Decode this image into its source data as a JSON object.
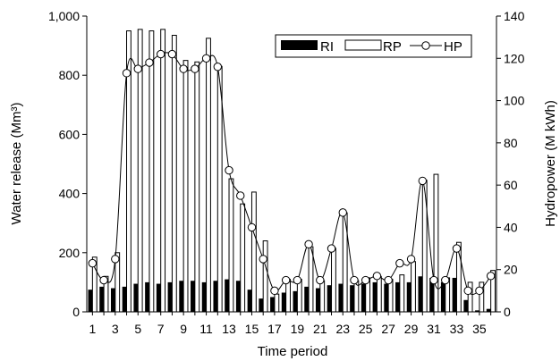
{
  "chart_data": {
    "type": "bar",
    "xlabel": "Time period",
    "ylabel": "Water release (Mm³)",
    "y2label": "Hydropower (M kWh)",
    "ylim": [
      0,
      1000
    ],
    "y2lim": [
      0,
      140
    ],
    "yticks": [
      "0",
      "200",
      "400",
      "600",
      "800",
      "1,000"
    ],
    "yticks_values": [
      0,
      200,
      400,
      600,
      800,
      1000
    ],
    "y2ticks": [
      "0",
      "20",
      "40",
      "60",
      "80",
      "100",
      "120",
      "140"
    ],
    "y2ticks_values": [
      0,
      20,
      40,
      60,
      80,
      100,
      120,
      140
    ],
    "x": [
      1,
      2,
      3,
      4,
      5,
      6,
      7,
      8,
      9,
      10,
      11,
      12,
      13,
      14,
      15,
      16,
      17,
      18,
      19,
      20,
      21,
      22,
      23,
      24,
      25,
      26,
      27,
      28,
      29,
      30,
      31,
      32,
      33,
      34,
      35,
      36
    ],
    "xtick_labels": [
      "1",
      "3",
      "5",
      "7",
      "9",
      "11",
      "13",
      "15",
      "17",
      "19",
      "21",
      "23",
      "25",
      "27",
      "29",
      "31",
      "33",
      "35"
    ],
    "xtick_positions": [
      1,
      3,
      5,
      7,
      9,
      11,
      13,
      15,
      17,
      19,
      21,
      23,
      25,
      27,
      29,
      31,
      33,
      35
    ],
    "legend_position": "top-right",
    "series": [
      {
        "name": "RI",
        "kind": "bar-filled",
        "axis": "left",
        "values": [
          75,
          85,
          80,
          85,
          95,
          100,
          95,
          100,
          105,
          105,
          100,
          105,
          110,
          105,
          75,
          45,
          50,
          65,
          70,
          85,
          80,
          90,
          95,
          90,
          95,
          100,
          95,
          100,
          100,
          120,
          115,
          100,
          115,
          40,
          5,
          10
        ]
      },
      {
        "name": "RP",
        "kind": "bar-open",
        "axis": "left",
        "values": [
          185,
          120,
          200,
          950,
          955,
          950,
          955,
          935,
          850,
          845,
          925,
          830,
          450,
          365,
          405,
          240,
          60,
          110,
          110,
          220,
          105,
          215,
          335,
          105,
          115,
          120,
          110,
          125,
          170,
          445,
          465,
          115,
          235,
          100,
          100,
          140
        ]
      },
      {
        "name": "HP",
        "kind": "line-marker",
        "axis": "right",
        "values": [
          23,
          15,
          25,
          113,
          115,
          118,
          122,
          122,
          115,
          115,
          120,
          116,
          67,
          55,
          40,
          25,
          10,
          15,
          15,
          32,
          15,
          30,
          47,
          15,
          15,
          17,
          15,
          23,
          25,
          62,
          15,
          15,
          30,
          10,
          10,
          17
        ]
      }
    ]
  }
}
